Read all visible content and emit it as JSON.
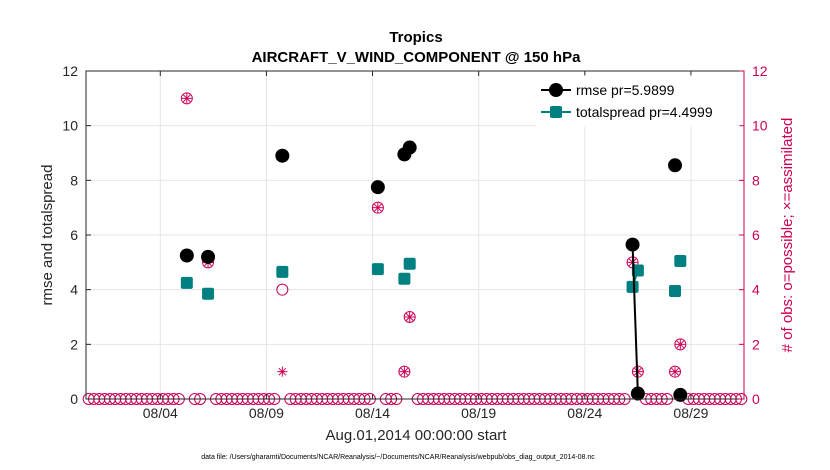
{
  "colors": {
    "rmse": "#000000",
    "spread": "#008080",
    "obs": "#cc0055",
    "grid": "#e6e6e6",
    "axis": "#262626"
  },
  "chart_data": {
    "type": "line",
    "title": "Tropics",
    "subtitle": "AIRCRAFT_V_WIND_COMPONENT @ 150 hPa",
    "xlabel": "Aug.01,2014 00:00:00 start",
    "ylabel_left": "rmse and totalspread",
    "ylabel_right": "# of obs: o=possible; ×=assimilated",
    "footnote": "data file: /Users/gharamti/Documents/NCAR/Reanalysis/~/Documents/NCAR/Reanalysis/webpub/obs_diag_output_2014-08.nc",
    "xlim": [
      1,
      32
    ],
    "ylim": [
      0,
      12
    ],
    "ylim_right": [
      0,
      12
    ],
    "x_ticks": [
      {
        "x": 4.5,
        "label": "08/04"
      },
      {
        "x": 9.5,
        "label": "08/09"
      },
      {
        "x": 14.5,
        "label": "08/14"
      },
      {
        "x": 19.5,
        "label": "08/19"
      },
      {
        "x": 24.5,
        "label": "08/24"
      },
      {
        "x": 29.5,
        "label": "08/29"
      }
    ],
    "y_ticks": [
      {
        "v": 0,
        "label": "0"
      },
      {
        "v": 2,
        "label": "2"
      },
      {
        "v": 4,
        "label": "4"
      },
      {
        "v": 6,
        "label": "6"
      },
      {
        "v": 8,
        "label": "8"
      },
      {
        "v": 10,
        "label": "10"
      },
      {
        "v": 12,
        "label": "12"
      }
    ],
    "y_ticks_right": [
      {
        "v": 0,
        "label": "0"
      },
      {
        "v": 2,
        "label": "2"
      },
      {
        "v": 4,
        "label": "4"
      },
      {
        "v": 6,
        "label": "6"
      },
      {
        "v": 8,
        "label": "8"
      },
      {
        "v": 10,
        "label": "10"
      },
      {
        "v": 12,
        "label": "12"
      }
    ],
    "legend": [
      {
        "series": "rmse",
        "label": "rmse pr=5.9899"
      },
      {
        "series": "spread",
        "label": "totalspread pr=4.4999"
      }
    ],
    "legend_position": "top-right",
    "grid": true,
    "series": [
      {
        "name": "rmse",
        "points": [
          [
            5.75,
            5.25
          ],
          [
            6.75,
            5.2
          ],
          [
            10.25,
            8.9
          ],
          [
            14.75,
            7.75
          ],
          [
            16.0,
            8.95
          ],
          [
            16.25,
            9.2
          ],
          [
            26.75,
            5.65
          ],
          [
            27.0,
            0.2
          ],
          [
            28.75,
            8.55
          ],
          [
            29.0,
            0.15
          ]
        ],
        "line_segments": [
          [
            26.75,
            27.0
          ]
        ]
      },
      {
        "name": "totalspread",
        "points": [
          [
            5.75,
            4.25
          ],
          [
            6.75,
            3.85
          ],
          [
            10.25,
            4.65
          ],
          [
            14.75,
            4.75
          ],
          [
            16.0,
            4.4
          ],
          [
            16.25,
            4.95
          ],
          [
            26.75,
            4.1
          ],
          [
            27.0,
            4.7
          ],
          [
            28.75,
            3.95
          ],
          [
            29.0,
            5.05
          ]
        ],
        "line_segments": [
          [
            26.75,
            27.0
          ]
        ]
      },
      {
        "name": "obs_possible",
        "points": [
          [
            5.75,
            11
          ],
          [
            6.75,
            5
          ],
          [
            10.25,
            4
          ],
          [
            14.75,
            7
          ],
          [
            16.0,
            1
          ],
          [
            16.25,
            3
          ],
          [
            26.75,
            5
          ],
          [
            27.0,
            1
          ],
          [
            28.75,
            1
          ],
          [
            29.0,
            2
          ]
        ],
        "zero_days_step": 0.25
      },
      {
        "name": "obs_assimilated",
        "points": [
          [
            5.75,
            11
          ],
          [
            6.75,
            5
          ],
          [
            10.25,
            1
          ],
          [
            14.75,
            7
          ],
          [
            16.0,
            1
          ],
          [
            16.25,
            3
          ],
          [
            26.75,
            5
          ],
          [
            27.0,
            1
          ],
          [
            28.75,
            1
          ],
          [
            29.0,
            2
          ]
        ]
      }
    ]
  }
}
